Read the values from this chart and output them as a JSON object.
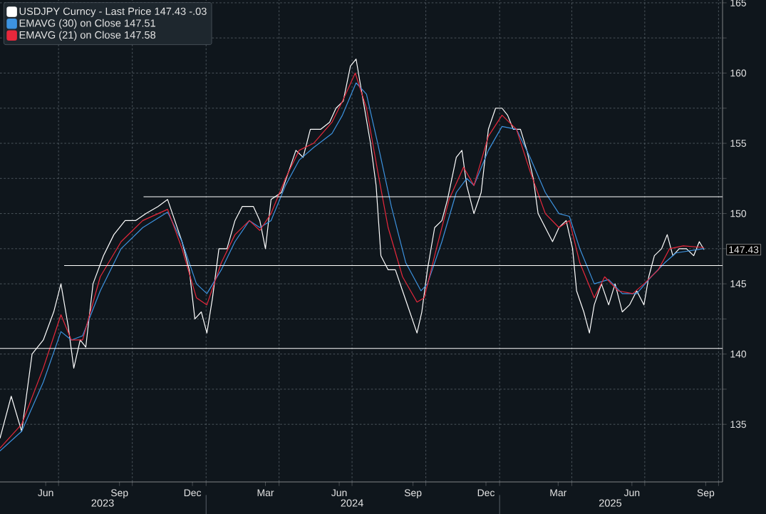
{
  "chart_data": {
    "type": "line",
    "xlim": [
      "2023-04-19",
      "2025-10-06"
    ],
    "xticks": [
      {
        "value": "2023-06-15",
        "label": "Jun"
      },
      {
        "value": "2023-09-15",
        "label": "Sep"
      },
      {
        "value": "2023-12-15",
        "label": "Dec"
      },
      {
        "value": "2024-03-15",
        "label": "Mar"
      },
      {
        "value": "2024-06-15",
        "label": "Jun"
      },
      {
        "value": "2024-09-15",
        "label": "Sep"
      },
      {
        "value": "2024-12-15",
        "label": "Dec"
      },
      {
        "value": "2025-03-15",
        "label": "Mar"
      },
      {
        "value": "2025-06-15",
        "label": "Jun"
      },
      {
        "value": "2025-09-15",
        "label": "Sep"
      },
      {
        "value": "2023-07-01",
        "label": null
      },
      {
        "value": "2023-10-01",
        "label": null
      },
      {
        "value": "2024-01-01",
        "label": null
      },
      {
        "value": "2024-04-01",
        "label": null
      },
      {
        "value": "2024-07-01",
        "label": null
      },
      {
        "value": "2024-10-01",
        "label": null
      },
      {
        "value": "2025-01-01",
        "label": null
      },
      {
        "value": "2025-04-01",
        "label": null
      },
      {
        "value": "2025-07-01",
        "label": null
      },
      {
        "value": "2025-10-01",
        "label": null
      }
    ],
    "x2lim": [
      "2023-04-19",
      "2025-10-06"
    ],
    "x2ticks": [
      {
        "value": "2023-08-25",
        "label": "2023"
      },
      {
        "value": "2024-07-01",
        "label": "2024"
      },
      {
        "value": "2025-05-19",
        "label": "2025"
      },
      {
        "value": "2024-01-01",
        "label": null
      },
      {
        "value": "2025-01-01",
        "label": null
      }
    ],
    "ylim": [
      130.9,
      165.2
    ],
    "yticks": [
      135,
      140,
      145,
      150,
      155,
      160,
      165,
      {
        "value": 137.5,
        "label": null
      },
      {
        "value": 142.5,
        "label": null
      },
      {
        "value": 147.5,
        "label": null
      },
      {
        "value": 152.5,
        "label": null
      },
      {
        "value": 157.5,
        "label": null
      },
      {
        "value": 162.5,
        "label": null
      }
    ],
    "grid": true,
    "legend": "top left",
    "annotations": [
      "147.43"
    ],
    "series": [
      {
        "name": "USDJPY Curncy - Last Price 147.43 -.03",
        "color": "#ffffff",
        "x": [
          "2023-04-19",
          "2023-05-03",
          "2023-05-16",
          "2023-05-29",
          "2023-06-12",
          "2023-06-25",
          "2023-07-04",
          "2023-07-13",
          "2023-07-20",
          "2023-07-28",
          "2023-08-04",
          "2023-08-13",
          "2023-08-26",
          "2023-09-08",
          "2023-09-22",
          "2023-10-05",
          "2023-10-18",
          "2023-11-02",
          "2023-11-14",
          "2023-11-23",
          "2023-12-02",
          "2023-12-11",
          "2023-12-18",
          "2023-12-26",
          "2024-01-02",
          "2024-01-09",
          "2024-01-17",
          "2024-01-27",
          "2024-02-06",
          "2024-02-15",
          "2024-02-29",
          "2024-03-08",
          "2024-03-15",
          "2024-03-22",
          "2024-04-04",
          "2024-04-13",
          "2024-04-22",
          "2024-05-01",
          "2024-05-10",
          "2024-05-23",
          "2024-06-03",
          "2024-06-11",
          "2024-06-20",
          "2024-06-29",
          "2024-07-06",
          "2024-07-15",
          "2024-07-24",
          "2024-07-31",
          "2024-08-06",
          "2024-08-15",
          "2024-08-24",
          "2024-09-02",
          "2024-09-11",
          "2024-09-20",
          "2024-09-26",
          "2024-10-03",
          "2024-10-12",
          "2024-10-21",
          "2024-10-28",
          "2024-11-08",
          "2024-11-15",
          "2024-11-21",
          "2024-11-30",
          "2024-12-09",
          "2024-12-18",
          "2024-12-27",
          "2025-01-04",
          "2025-01-11",
          "2025-01-18",
          "2025-01-27",
          "2025-02-04",
          "2025-02-12",
          "2025-02-18",
          "2025-02-27",
          "2025-03-08",
          "2025-03-16",
          "2025-03-25",
          "2025-04-02",
          "2025-04-07",
          "2025-04-16",
          "2025-04-23",
          "2025-04-29",
          "2025-05-08",
          "2025-05-17",
          "2025-05-25",
          "2025-06-03",
          "2025-06-12",
          "2025-06-21",
          "2025-06-30",
          "2025-07-06",
          "2025-07-13",
          "2025-07-22",
          "2025-07-29",
          "2025-08-05",
          "2025-08-13",
          "2025-08-22",
          "2025-08-31",
          "2025-09-07",
          "2025-09-13"
        ],
        "values": [
          134,
          137,
          134.5,
          140,
          141,
          143,
          145,
          142,
          139,
          141,
          140.5,
          145,
          147,
          148.5,
          149.5,
          149.5,
          150,
          150.5,
          151,
          149.5,
          148,
          146,
          142.5,
          143,
          141.5,
          144,
          147.5,
          147.5,
          149.5,
          150.5,
          150.5,
          149.5,
          147.5,
          151,
          151.5,
          153,
          154.5,
          154,
          156,
          156,
          156.5,
          157.5,
          158,
          160.5,
          161,
          158,
          155,
          152,
          147,
          146,
          146,
          144.5,
          143,
          141.5,
          143,
          146,
          149,
          149.5,
          151,
          154,
          154.5,
          152,
          150,
          151.5,
          156,
          157.5,
          157.5,
          157,
          156,
          156,
          154.5,
          152.5,
          150,
          149,
          148,
          149,
          149.5,
          147.5,
          144.5,
          143,
          141.5,
          143.5,
          145,
          143.5,
          145,
          143,
          143.5,
          144.5,
          143.5,
          145.5,
          147,
          147.5,
          148.5,
          147,
          147.5,
          147.5,
          147,
          148,
          147.43
        ]
      },
      {
        "name": "EMAVG (30) on Close 147.51",
        "color": "#3d93e0",
        "x": [
          "2023-04-19",
          "2023-05-16",
          "2023-06-12",
          "2023-07-04",
          "2023-07-17",
          "2023-07-31",
          "2023-08-22",
          "2023-09-17",
          "2023-10-14",
          "2023-11-14",
          "2023-12-02",
          "2023-12-20",
          "2024-01-02",
          "2024-01-20",
          "2024-02-06",
          "2024-02-24",
          "2024-03-08",
          "2024-03-22",
          "2024-04-09",
          "2024-04-26",
          "2024-05-14",
          "2024-06-06",
          "2024-06-19",
          "2024-07-06",
          "2024-07-19",
          "2024-08-02",
          "2024-08-19",
          "2024-09-06",
          "2024-09-25",
          "2024-10-03",
          "2024-10-21",
          "2024-11-08",
          "2024-11-21",
          "2024-11-30",
          "2024-12-18",
          "2025-01-04",
          "2025-01-22",
          "2025-02-08",
          "2025-02-27",
          "2025-03-16",
          "2025-03-29",
          "2025-04-11",
          "2025-04-29",
          "2025-05-17",
          "2025-06-03",
          "2025-06-21",
          "2025-07-09",
          "2025-07-26",
          "2025-08-09",
          "2025-09-13"
        ],
        "values": [
          133.1,
          134.5,
          138,
          141.6,
          141,
          141.3,
          144.5,
          147.5,
          149,
          150.1,
          148,
          145,
          144.3,
          146,
          148,
          149.5,
          149,
          149.5,
          152,
          153.8,
          154.7,
          155.7,
          157,
          159.3,
          158.5,
          155,
          150.5,
          146.5,
          144.5,
          145,
          148,
          151.5,
          152.5,
          152,
          154.5,
          156.2,
          156,
          154,
          151.5,
          150,
          149.8,
          147.5,
          145,
          145.3,
          144.3,
          144.3,
          145.5,
          146.5,
          147.2,
          147.51
        ]
      },
      {
        "name": "EMAVG (21) on Close 147.58",
        "color": "#e8283c",
        "x": [
          "2023-04-19",
          "2023-05-16",
          "2023-06-12",
          "2023-07-04",
          "2023-07-17",
          "2023-07-31",
          "2023-08-22",
          "2023-09-17",
          "2023-10-14",
          "2023-11-14",
          "2023-12-02",
          "2023-12-20",
          "2024-01-02",
          "2024-01-20",
          "2024-02-06",
          "2024-02-24",
          "2024-03-08",
          "2024-03-22",
          "2024-04-09",
          "2024-04-26",
          "2024-05-14",
          "2024-06-06",
          "2024-06-19",
          "2024-07-05",
          "2024-07-19",
          "2024-08-02",
          "2024-08-15",
          "2024-09-02",
          "2024-09-20",
          "2024-09-29",
          "2024-10-12",
          "2024-10-30",
          "2024-11-17",
          "2024-11-30",
          "2024-12-18",
          "2025-01-04",
          "2025-01-22",
          "2025-02-08",
          "2025-02-27",
          "2025-03-16",
          "2025-03-29",
          "2025-04-11",
          "2025-04-29",
          "2025-05-12",
          "2025-05-29",
          "2025-06-16",
          "2025-06-30",
          "2025-07-18",
          "2025-08-01",
          "2025-08-18",
          "2025-09-13"
        ],
        "values": [
          133.3,
          135,
          139,
          142.8,
          141,
          141,
          145.5,
          148,
          149.5,
          150.3,
          147.5,
          144,
          143.5,
          146.5,
          148.5,
          149.5,
          148.8,
          150,
          152.5,
          154.5,
          155,
          156.5,
          158,
          160,
          157.5,
          153,
          149,
          145.5,
          143.7,
          144,
          147,
          151,
          153.3,
          152,
          155.5,
          157,
          156,
          153,
          150,
          149,
          149.5,
          146.5,
          144,
          145.5,
          144.5,
          144.3,
          145,
          146,
          147.5,
          147.7,
          147.58
        ]
      },
      {
        "color": "#ffffff",
        "x": [
          "2023-10-15",
          "2025-10-06"
        ],
        "values": [
          151.2,
          151.2
        ]
      },
      {
        "color": "#ffffff",
        "x": [
          "2023-07-08",
          "2025-10-06"
        ],
        "values": [
          146.3,
          146.3
        ]
      },
      {
        "color": "#ffffff",
        "x": [
          "2023-04-19",
          "2025-10-06"
        ],
        "values": [
          140.4,
          140.4
        ]
      }
    ]
  }
}
